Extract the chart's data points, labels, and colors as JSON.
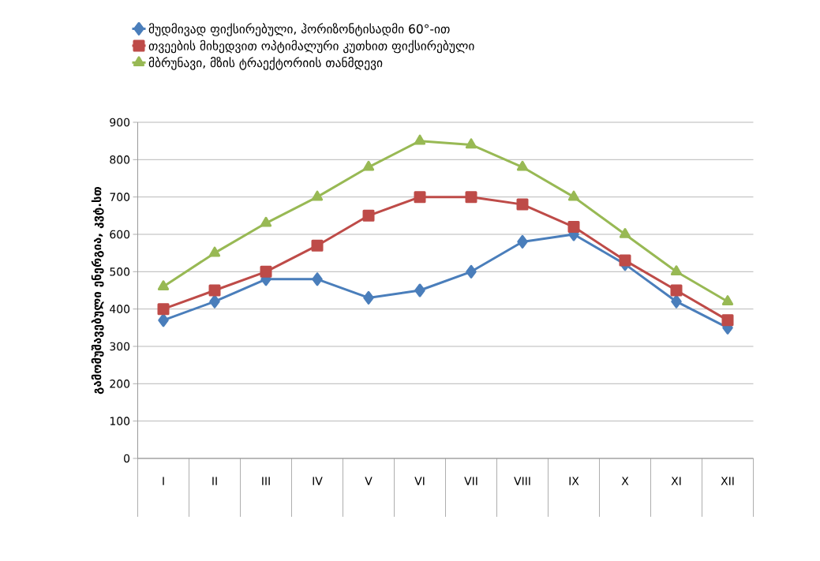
{
  "chart_data": {
    "type": "line",
    "ylabel": "გამომუშავებული ენერგია, კვტ.სთ",
    "categories": [
      "I",
      "II",
      "III",
      "IV",
      "V",
      "VI",
      "VII",
      "VIII",
      "IX",
      "X",
      "XI",
      "XII"
    ],
    "series": [
      {
        "name": "მუდმივად ფიქსირებული, ჰორიზონტისადმი 60°-ით",
        "color": "#4a7ebb",
        "marker": "diamond",
        "values": [
          370,
          420,
          480,
          480,
          430,
          450,
          500,
          580,
          600,
          520,
          420,
          350
        ]
      },
      {
        "name": "თვეების მიხედვით ოპტიმალური კუთხით ფიქსირებული",
        "color": "#be4b48",
        "marker": "square",
        "values": [
          400,
          450,
          500,
          570,
          650,
          700,
          700,
          680,
          620,
          530,
          450,
          370
        ]
      },
      {
        "name": "მბრუნავი, მზის ტრაექტორიის თანმდევი",
        "color": "#98b954",
        "marker": "triangle",
        "values": [
          460,
          550,
          630,
          700,
          780,
          850,
          840,
          780,
          700,
          600,
          500,
          420
        ]
      }
    ],
    "ylim": [
      0,
      900
    ],
    "yticks": [
      0,
      100,
      200,
      300,
      400,
      500,
      600,
      700,
      800,
      900
    ],
    "grid": "y",
    "legend": "top left",
    "line_style": "solid"
  }
}
